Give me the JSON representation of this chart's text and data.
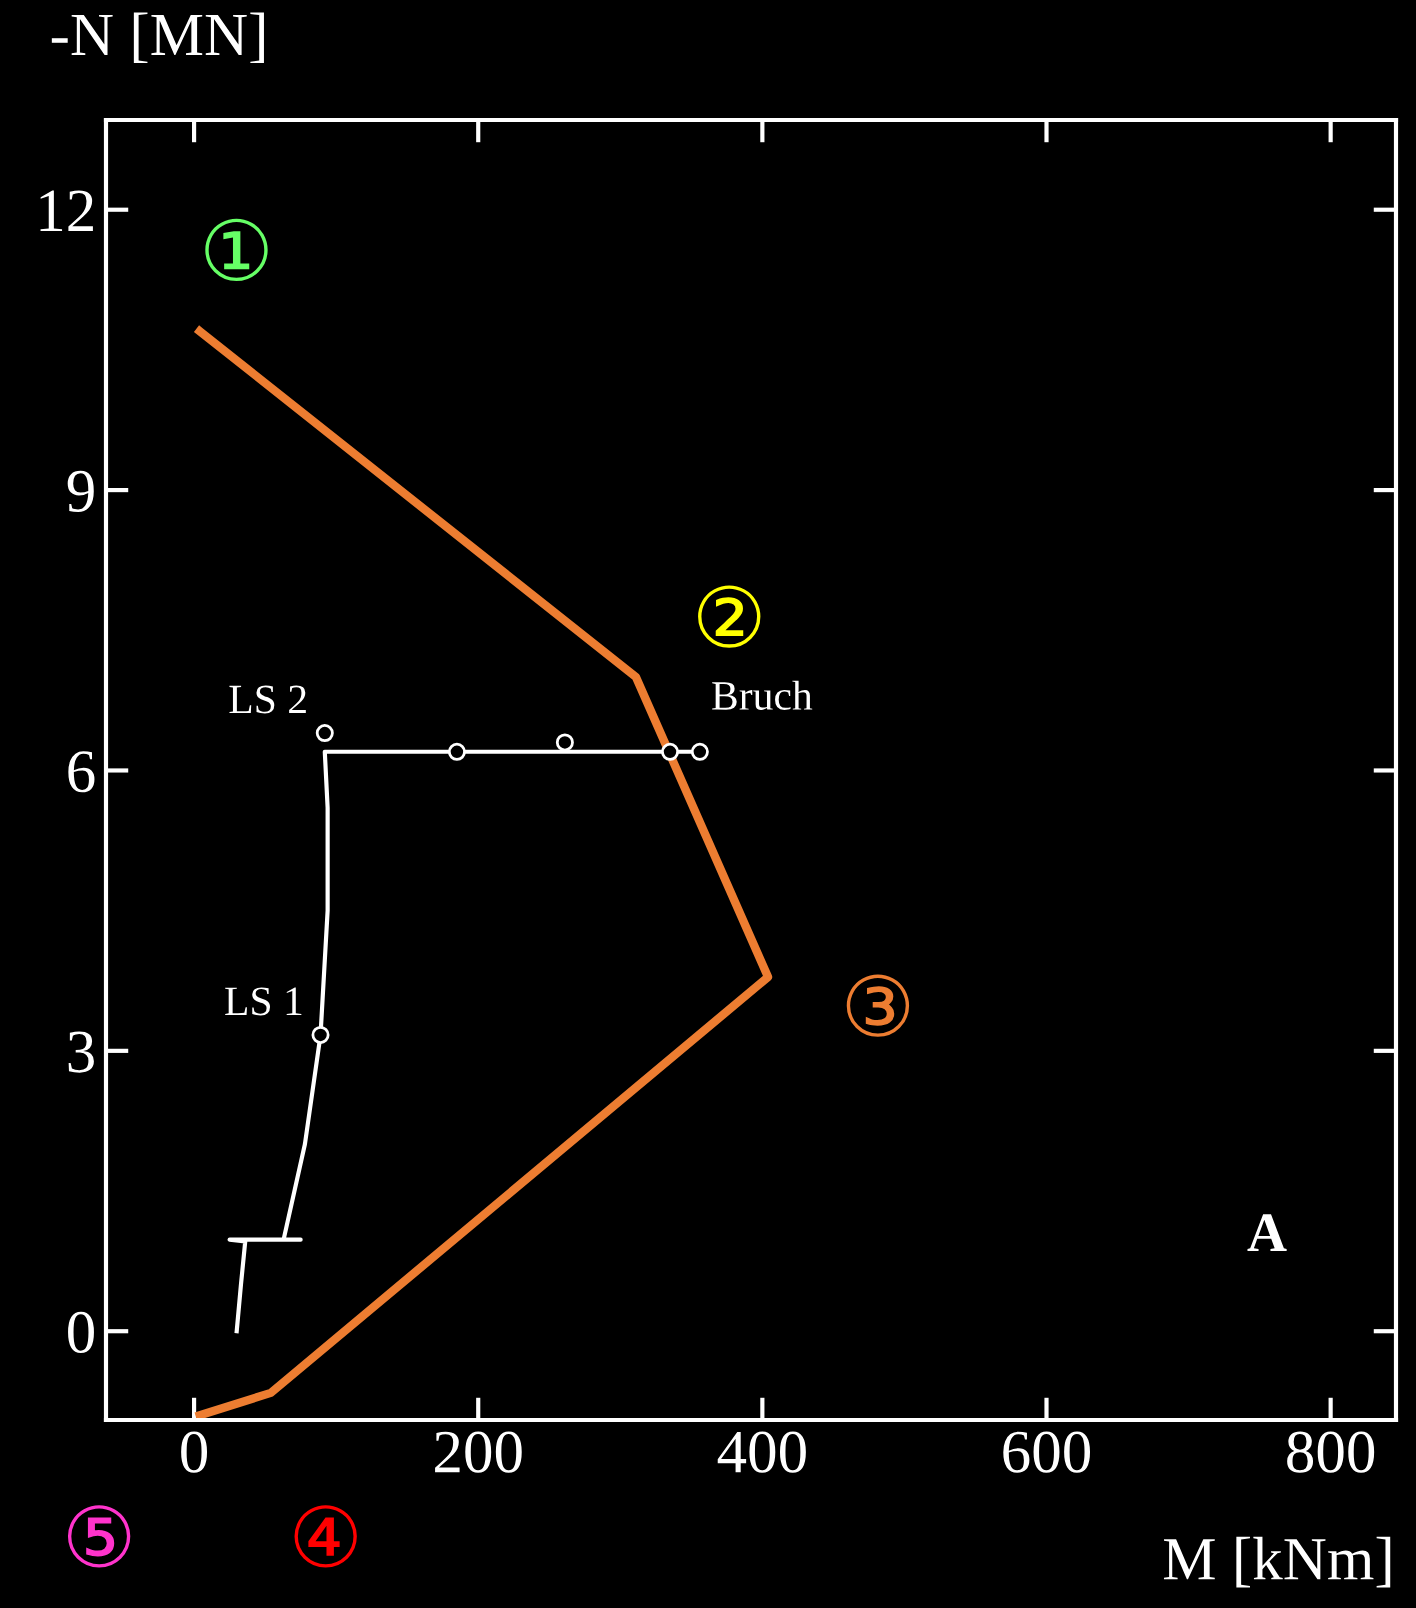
{
  "chart_data": {
    "type": "line",
    "xlabel": "M [kNm]",
    "ylabel": "-N [MN]",
    "xlim": [
      -62,
      846
    ],
    "ylim": [
      -0.95,
      12.96
    ],
    "xticks": [
      0,
      200,
      400,
      600,
      800
    ],
    "yticks": [
      0,
      3,
      6,
      9,
      12
    ],
    "grid": false,
    "legend": false,
    "series": [
      {
        "color": "#ed7d31",
        "x": [
          4,
          311,
          404,
          54,
          4
        ],
        "values": [
          10.7,
          7.0,
          3.79,
          -0.66,
          -0.9
        ]
      },
      {
        "color": "#ffffff",
        "x": [
          30,
          33,
          36,
          25,
          75,
          63,
          78,
          89,
          94,
          94,
          92,
          355
        ],
        "values": [
          0.0,
          0.5,
          0.96,
          0.98,
          0.98,
          0.98,
          2.0,
          3.17,
          4.5,
          5.6,
          6.2,
          6.2
        ]
      },
      {
        "type": "scatter",
        "color": "#ffffff",
        "marker": "circle",
        "x": [
          89,
          92,
          185,
          261,
          335,
          356
        ],
        "values": [
          3.17,
          6.4,
          6.2,
          6.3,
          6.2,
          6.2
        ]
      }
    ],
    "annotations": [
      "①",
      "②",
      "③",
      "④",
      "⑤",
      {
        "text": "LS 1",
        "x": 89,
        "y": 3.17
      },
      {
        "text": "LS 2",
        "x": 92,
        "y": 6.4
      },
      {
        "text": "Bruch",
        "x": 356,
        "y": 6.2
      },
      "A"
    ]
  }
}
